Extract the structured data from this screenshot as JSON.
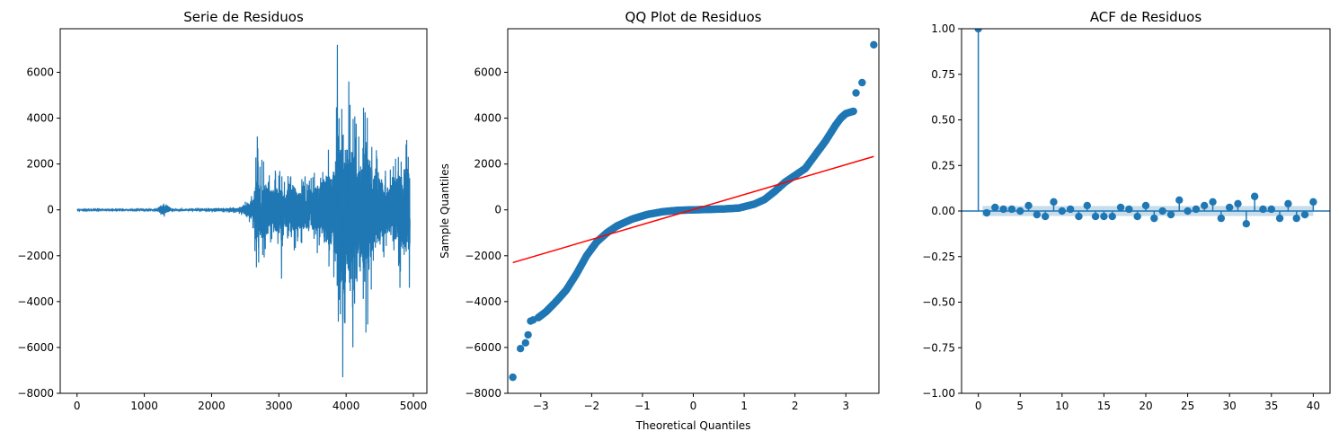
{
  "chart_data": [
    {
      "type": "line",
      "title": "Serie de Residuos",
      "xlabel": "",
      "ylabel": "",
      "xlim": [
        -250,
        5200
      ],
      "ylim": [
        -8000,
        7900
      ],
      "xticks": [
        0,
        1000,
        2000,
        3000,
        4000,
        5000
      ],
      "yticks": [
        -8000,
        -6000,
        -4000,
        -2000,
        0,
        2000,
        4000,
        6000
      ],
      "color": "#1f77b4",
      "n_points": 4950,
      "envelope": [
        [
          0,
          20
        ],
        [
          1150,
          20
        ],
        [
          1200,
          150
        ],
        [
          1250,
          300
        ],
        [
          1280,
          420
        ],
        [
          1320,
          250
        ],
        [
          1400,
          80
        ],
        [
          1600,
          60
        ],
        [
          2000,
          80
        ],
        [
          2400,
          150
        ],
        [
          2550,
          500
        ],
        [
          2620,
          900
        ],
        [
          2680,
          3200
        ],
        [
          2700,
          1800
        ],
        [
          2750,
          2300
        ],
        [
          2900,
          1600
        ],
        [
          3000,
          1900
        ],
        [
          3100,
          1400
        ],
        [
          3200,
          2000
        ],
        [
          3300,
          1500
        ],
        [
          3500,
          1600
        ],
        [
          3700,
          2600
        ],
        [
          3800,
          2800
        ],
        [
          3850,
          4200
        ],
        [
          3870,
          7200
        ],
        [
          3900,
          4500
        ],
        [
          3940,
          5500
        ],
        [
          3980,
          7300
        ],
        [
          4000,
          5000
        ],
        [
          4100,
          4600
        ],
        [
          4200,
          3200
        ],
        [
          4300,
          5500
        ],
        [
          4400,
          3000
        ],
        [
          4500,
          2500
        ],
        [
          4600,
          1800
        ],
        [
          4700,
          2200
        ],
        [
          4800,
          2900
        ],
        [
          4900,
          3400
        ],
        [
          4950,
          3000
        ]
      ],
      "peaks": [
        [
          2680,
          3200
        ],
        [
          2700,
          -2300
        ],
        [
          3040,
          -3000
        ],
        [
          3870,
          7200
        ],
        [
          3950,
          -7300
        ],
        [
          4040,
          5600
        ],
        [
          4100,
          -6000
        ],
        [
          4320,
          -5000
        ],
        [
          4800,
          -3400
        ],
        [
          4900,
          3050
        ],
        [
          4940,
          -3400
        ]
      ]
    },
    {
      "type": "scatter",
      "title": "QQ Plot de Residuos",
      "xlabel": "Theoretical Quantiles",
      "ylabel": "Sample Quantiles",
      "xlim": [
        -3.65,
        3.65
      ],
      "ylim": [
        -8000,
        7900
      ],
      "xticks": [
        -3,
        -2,
        -1,
        0,
        1,
        2,
        3
      ],
      "yticks": [
        -8000,
        -6000,
        -4000,
        -2000,
        0,
        2000,
        4000,
        6000
      ],
      "color": "#1f77b4",
      "reference_line": {
        "color": "#ff0000",
        "points": [
          [
            -3.55,
            -2300
          ],
          [
            3.55,
            2330
          ]
        ]
      },
      "curve": [
        [
          -3.05,
          -4700
        ],
        [
          -2.9,
          -4450
        ],
        [
          -2.7,
          -4000
        ],
        [
          -2.5,
          -3500
        ],
        [
          -2.3,
          -2800
        ],
        [
          -2.1,
          -2000
        ],
        [
          -1.9,
          -1400
        ],
        [
          -1.7,
          -1000
        ],
        [
          -1.5,
          -700
        ],
        [
          -1.2,
          -400
        ],
        [
          -0.9,
          -200
        ],
        [
          -0.6,
          -80
        ],
        [
          -0.3,
          -20
        ],
        [
          0,
          0
        ],
        [
          0.3,
          20
        ],
        [
          0.6,
          40
        ],
        [
          0.9,
          80
        ],
        [
          1.2,
          250
        ],
        [
          1.4,
          450
        ],
        [
          1.6,
          800
        ],
        [
          1.8,
          1200
        ],
        [
          2.0,
          1500
        ],
        [
          2.2,
          1800
        ],
        [
          2.4,
          2400
        ],
        [
          2.6,
          3000
        ],
        [
          2.8,
          3700
        ],
        [
          2.9,
          4000
        ],
        [
          3.0,
          4200
        ],
        [
          3.15,
          4300
        ]
      ],
      "tail_points": [
        [
          -3.55,
          -7300
        ],
        [
          -3.4,
          -6050
        ],
        [
          -3.3,
          -5800
        ],
        [
          -3.25,
          -5450
        ],
        [
          -3.2,
          -4850
        ],
        [
          -3.15,
          -4800
        ],
        [
          3.2,
          5100
        ],
        [
          3.32,
          5550
        ],
        [
          3.55,
          7200
        ]
      ]
    },
    {
      "type": "stem",
      "title": "ACF de Residuos",
      "xlabel": "",
      "ylabel": "",
      "xlim": [
        -2,
        42
      ],
      "ylim": [
        -1.0,
        1.0
      ],
      "xticks": [
        0,
        5,
        10,
        15,
        20,
        25,
        30,
        35,
        40
      ],
      "yticks": [
        -1.0,
        -0.75,
        -0.5,
        -0.25,
        0.0,
        0.25,
        0.5,
        0.75,
        1.0
      ],
      "ytick_labels": [
        "−1.00",
        "−0.75",
        "−0.50",
        "−0.25",
        "0.00",
        "0.25",
        "0.50",
        "0.75",
        "1.00"
      ],
      "color": "#1f77b4",
      "confidence_band": 0.028,
      "lags": [
        0,
        1,
        2,
        3,
        4,
        5,
        6,
        7,
        8,
        9,
        10,
        11,
        12,
        13,
        14,
        15,
        16,
        17,
        18,
        19,
        20,
        21,
        22,
        23,
        24,
        25,
        26,
        27,
        28,
        29,
        30,
        31,
        32,
        33,
        34,
        35,
        36,
        37,
        38,
        39,
        40
      ],
      "values": [
        1.0,
        -0.01,
        0.02,
        0.01,
        0.01,
        0.0,
        0.03,
        -0.02,
        -0.03,
        0.05,
        0.0,
        0.01,
        -0.03,
        0.03,
        -0.03,
        -0.03,
        -0.03,
        0.02,
        0.01,
        -0.03,
        0.03,
        -0.04,
        0.0,
        -0.02,
        0.06,
        0.0,
        0.01,
        0.03,
        0.05,
        -0.04,
        0.02,
        0.04,
        -0.07,
        0.08,
        0.01,
        0.01,
        -0.04,
        0.04,
        -0.04,
        -0.02,
        0.05
      ]
    }
  ]
}
